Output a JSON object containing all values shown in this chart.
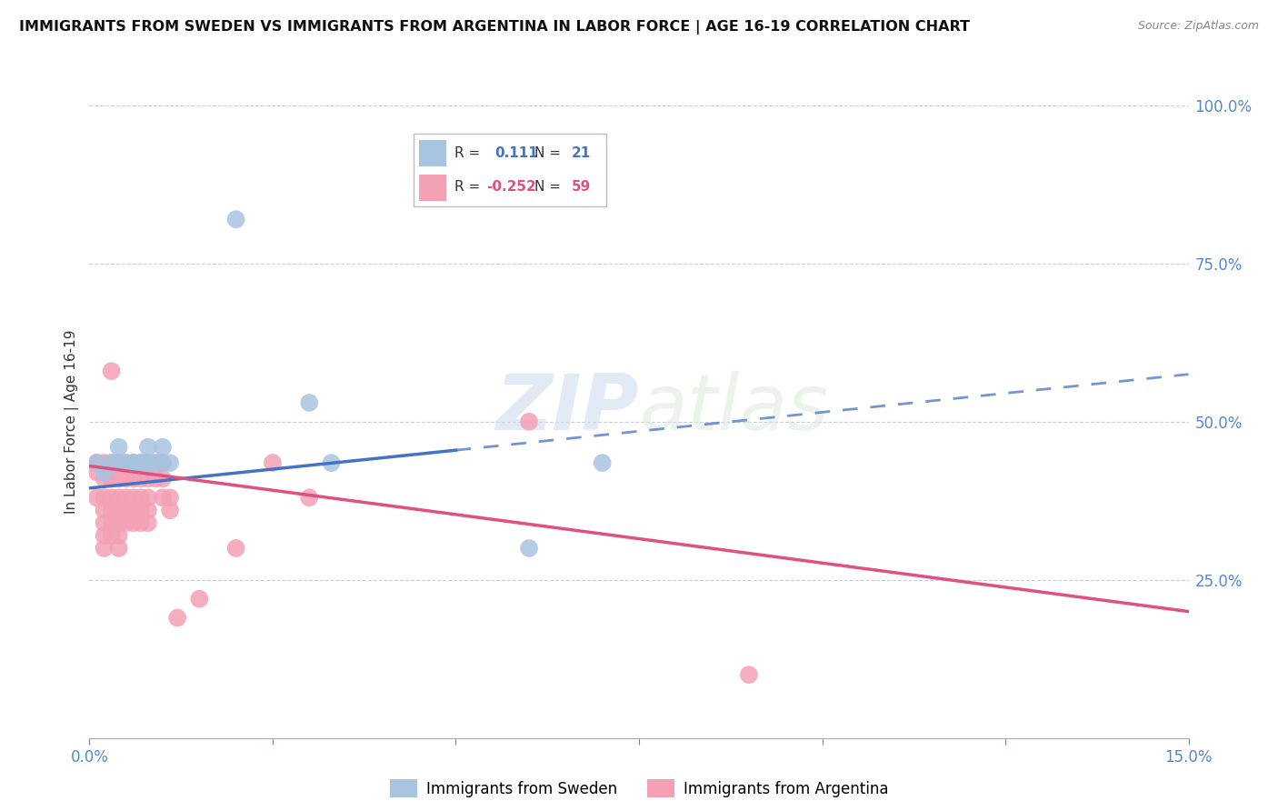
{
  "title": "IMMIGRANTS FROM SWEDEN VS IMMIGRANTS FROM ARGENTINA IN LABOR FORCE | AGE 16-19 CORRELATION CHART",
  "source": "Source: ZipAtlas.com",
  "ylabel": "In Labor Force | Age 16-19",
  "xlim": [
    0.0,
    0.15
  ],
  "ylim": [
    0.0,
    1.0
  ],
  "sweden_R": 0.111,
  "sweden_N": 21,
  "argentina_R": -0.252,
  "argentina_N": 59,
  "sweden_color": "#a8c4e0",
  "argentina_color": "#f4a0b5",
  "sweden_line_color": "#4472C4",
  "argentina_line_color": "#E05080",
  "watermark_zip": "ZIP",
  "watermark_atlas": "atlas",
  "sweden_points": [
    [
      0.001,
      0.435
    ],
    [
      0.002,
      0.42
    ],
    [
      0.003,
      0.435
    ],
    [
      0.004,
      0.435
    ],
    [
      0.004,
      0.46
    ],
    [
      0.005,
      0.435
    ],
    [
      0.006,
      0.435
    ],
    [
      0.006,
      0.435
    ],
    [
      0.007,
      0.435
    ],
    [
      0.007,
      0.435
    ],
    [
      0.008,
      0.435
    ],
    [
      0.008,
      0.46
    ],
    [
      0.009,
      0.435
    ],
    [
      0.01,
      0.46
    ],
    [
      0.01,
      0.435
    ],
    [
      0.011,
      0.435
    ],
    [
      0.02,
      0.82
    ],
    [
      0.03,
      0.53
    ],
    [
      0.033,
      0.435
    ],
    [
      0.06,
      0.3
    ],
    [
      0.07,
      0.435
    ]
  ],
  "argentina_points": [
    [
      0.001,
      0.435
    ],
    [
      0.001,
      0.42
    ],
    [
      0.001,
      0.38
    ],
    [
      0.001,
      0.435
    ],
    [
      0.002,
      0.435
    ],
    [
      0.002,
      0.41
    ],
    [
      0.002,
      0.38
    ],
    [
      0.002,
      0.36
    ],
    [
      0.002,
      0.34
    ],
    [
      0.002,
      0.32
    ],
    [
      0.002,
      0.3
    ],
    [
      0.003,
      0.58
    ],
    [
      0.003,
      0.435
    ],
    [
      0.003,
      0.41
    ],
    [
      0.003,
      0.38
    ],
    [
      0.003,
      0.36
    ],
    [
      0.003,
      0.34
    ],
    [
      0.003,
      0.32
    ],
    [
      0.004,
      0.435
    ],
    [
      0.004,
      0.41
    ],
    [
      0.004,
      0.38
    ],
    [
      0.004,
      0.36
    ],
    [
      0.004,
      0.34
    ],
    [
      0.004,
      0.32
    ],
    [
      0.004,
      0.3
    ],
    [
      0.005,
      0.435
    ],
    [
      0.005,
      0.41
    ],
    [
      0.005,
      0.38
    ],
    [
      0.005,
      0.36
    ],
    [
      0.005,
      0.34
    ],
    [
      0.006,
      0.435
    ],
    [
      0.006,
      0.41
    ],
    [
      0.006,
      0.38
    ],
    [
      0.006,
      0.36
    ],
    [
      0.006,
      0.34
    ],
    [
      0.007,
      0.435
    ],
    [
      0.007,
      0.41
    ],
    [
      0.007,
      0.38
    ],
    [
      0.007,
      0.36
    ],
    [
      0.007,
      0.34
    ],
    [
      0.008,
      0.435
    ],
    [
      0.008,
      0.41
    ],
    [
      0.008,
      0.38
    ],
    [
      0.008,
      0.36
    ],
    [
      0.008,
      0.34
    ],
    [
      0.009,
      0.435
    ],
    [
      0.009,
      0.41
    ],
    [
      0.01,
      0.435
    ],
    [
      0.01,
      0.41
    ],
    [
      0.01,
      0.38
    ],
    [
      0.011,
      0.38
    ],
    [
      0.011,
      0.36
    ],
    [
      0.012,
      0.19
    ],
    [
      0.015,
      0.22
    ],
    [
      0.02,
      0.3
    ],
    [
      0.025,
      0.435
    ],
    [
      0.03,
      0.38
    ],
    [
      0.06,
      0.5
    ],
    [
      0.09,
      0.1
    ]
  ]
}
